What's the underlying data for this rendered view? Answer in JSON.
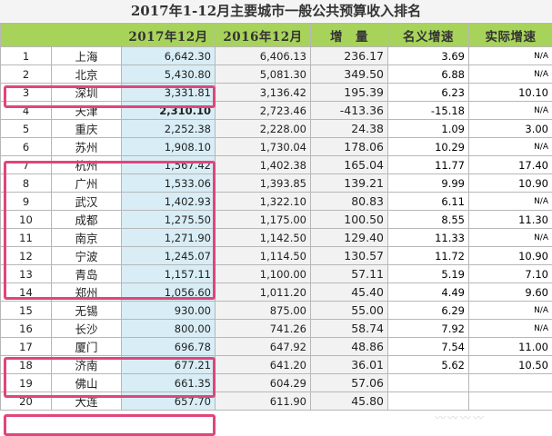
{
  "title": "2017年1-12月主要城市一般公共预算收入排名",
  "headers": [
    "",
    "",
    "2017年12月",
    "2016年12月",
    "增　量",
    "名义增速",
    "实际增速"
  ],
  "rows": [
    {
      "rank": "1",
      "city": "上海",
      "v2017": "6,642.30",
      "v2016": "6,406.13",
      "increase": "236.17",
      "nominal": "3.69",
      "real": "N/A"
    },
    {
      "rank": "2",
      "city": "北京",
      "v2017": "5,430.80",
      "v2016": "5,081.30",
      "increase": "349.50",
      "nominal": "6.88",
      "real": "N/A"
    },
    {
      "rank": "3",
      "city": "深圳",
      "v2017": "3,331.81",
      "v2016": "3,136.42",
      "increase": "195.39",
      "nominal": "6.23",
      "real": "10.10"
    },
    {
      "rank": "4",
      "city": "天津",
      "v2017": "2,310.10",
      "v2016": "2,723.46",
      "increase": "-413.36",
      "nominal": "-15.18",
      "real": "N/A"
    },
    {
      "rank": "5",
      "city": "重庆",
      "v2017": "2,252.38",
      "v2016": "2,228.00",
      "increase": "24.38",
      "nominal": "1.09",
      "real": "3.00"
    },
    {
      "rank": "6",
      "city": "苏州",
      "v2017": "1,908.10",
      "v2016": "1,730.04",
      "increase": "178.06",
      "nominal": "10.29",
      "real": "N/A"
    },
    {
      "rank": "7",
      "city": "杭州",
      "v2017": "1,567.42",
      "v2016": "1,402.38",
      "increase": "165.04",
      "nominal": "11.77",
      "real": "17.40"
    },
    {
      "rank": "8",
      "city": "广州",
      "v2017": "1,533.06",
      "v2016": "1,393.85",
      "increase": "139.21",
      "nominal": "9.99",
      "real": "10.90"
    },
    {
      "rank": "9",
      "city": "武汉",
      "v2017": "1,402.93",
      "v2016": "1,322.10",
      "increase": "80.83",
      "nominal": "6.11",
      "real": "N/A"
    },
    {
      "rank": "10",
      "city": "成都",
      "v2017": "1,275.50",
      "v2016": "1,175.00",
      "increase": "100.50",
      "nominal": "8.55",
      "real": "11.30"
    },
    {
      "rank": "11",
      "city": "南京",
      "v2017": "1,271.90",
      "v2016": "1,142.50",
      "increase": "129.40",
      "nominal": "11.33",
      "real": "N/A"
    },
    {
      "rank": "12",
      "city": "宁波",
      "v2017": "1,245.07",
      "v2016": "1,114.50",
      "increase": "130.57",
      "nominal": "11.72",
      "real": "10.90"
    },
    {
      "rank": "13",
      "city": "青岛",
      "v2017": "1,157.11",
      "v2016": "1,100.00",
      "increase": "57.11",
      "nominal": "5.19",
      "real": "7.10"
    },
    {
      "rank": "14",
      "city": "郑州",
      "v2017": "1,056.60",
      "v2016": "1,011.20",
      "increase": "45.40",
      "nominal": "4.49",
      "real": "9.60"
    },
    {
      "rank": "15",
      "city": "无锡",
      "v2017": "930.00",
      "v2016": "875.00",
      "increase": "55.00",
      "nominal": "6.29",
      "real": "N/A"
    },
    {
      "rank": "16",
      "city": "长沙",
      "v2017": "800.00",
      "v2016": "741.26",
      "increase": "58.74",
      "nominal": "7.92",
      "real": "N/A"
    },
    {
      "rank": "17",
      "city": "厦门",
      "v2017": "696.78",
      "v2016": "647.92",
      "increase": "48.86",
      "nominal": "7.54",
      "real": "11.00"
    },
    {
      "rank": "18",
      "city": "济南",
      "v2017": "677.21",
      "v2016": "641.20",
      "increase": "36.01",
      "nominal": "5.62",
      "real": "10.50"
    },
    {
      "rank": "19",
      "city": "佛山",
      "v2017": "661.35",
      "v2016": "604.29",
      "increase": "57.06",
      "nominal": "",
      "real": ""
    },
    {
      "rank": "20",
      "city": "大连",
      "v2017": "657.70",
      "v2016": "611.90",
      "increase": "45.80",
      "nominal": "",
      "real": ""
    }
  ],
  "highlighted_ranks": [
    "3",
    "7-13",
    "17-18",
    "20"
  ],
  "colors": {
    "header": "#a8d35b",
    "col2017": "#d8edf5",
    "highlight": "#e0457b"
  }
}
